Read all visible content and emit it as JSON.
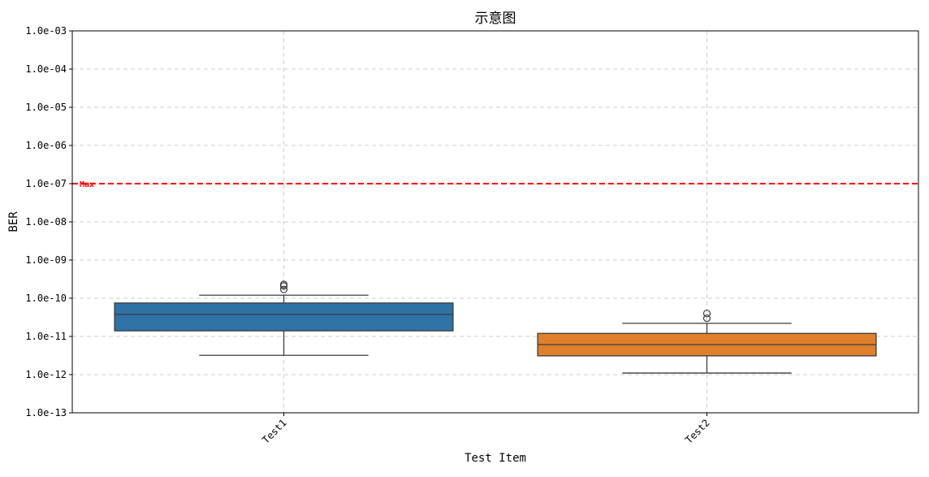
{
  "chart_data": {
    "type": "box",
    "title": "示意图",
    "xlabel": "Test Item",
    "ylabel": "BER",
    "yscale": "log",
    "ylim": [
      1e-13,
      0.001
    ],
    "yticks": [
      {
        "value": 1e-13,
        "label": "1.0e-13"
      },
      {
        "value": 1e-12,
        "label": "1.0e-12"
      },
      {
        "value": 1e-11,
        "label": "1.0e-11"
      },
      {
        "value": 1e-10,
        "label": "1.0e-10"
      },
      {
        "value": 1e-09,
        "label": "1.0e-09"
      },
      {
        "value": 1e-08,
        "label": "1.0e-08"
      },
      {
        "value": 1e-07,
        "label": "1.0e-07"
      },
      {
        "value": 1e-06,
        "label": "1.0e-06"
      },
      {
        "value": 1e-05,
        "label": "1.0e-05"
      },
      {
        "value": 0.0001,
        "label": "1.0e-04"
      },
      {
        "value": 0.001,
        "label": "1.0e-03"
      }
    ],
    "categories": [
      "Test1",
      "Test2"
    ],
    "boxes": [
      {
        "category": "Test1",
        "color": "#2e72a6",
        "min": 3.2e-12,
        "q1": 1.4e-11,
        "median": 3.8e-11,
        "q3": 7.5e-11,
        "max": 1.2e-10,
        "outliers": [
          1.7e-10,
          2.1e-10,
          2.3e-10
        ]
      },
      {
        "category": "Test2",
        "color": "#e07f2c",
        "min": 1.1e-12,
        "q1": 3.1e-12,
        "median": 6.1e-12,
        "q3": 1.2e-11,
        "max": 2.2e-11,
        "outliers": [
          3e-11,
          4e-11
        ]
      }
    ],
    "reference_line": {
      "value": 1e-07,
      "label": "Max",
      "color": "#ff0000"
    },
    "grid": true,
    "legend": "none"
  }
}
